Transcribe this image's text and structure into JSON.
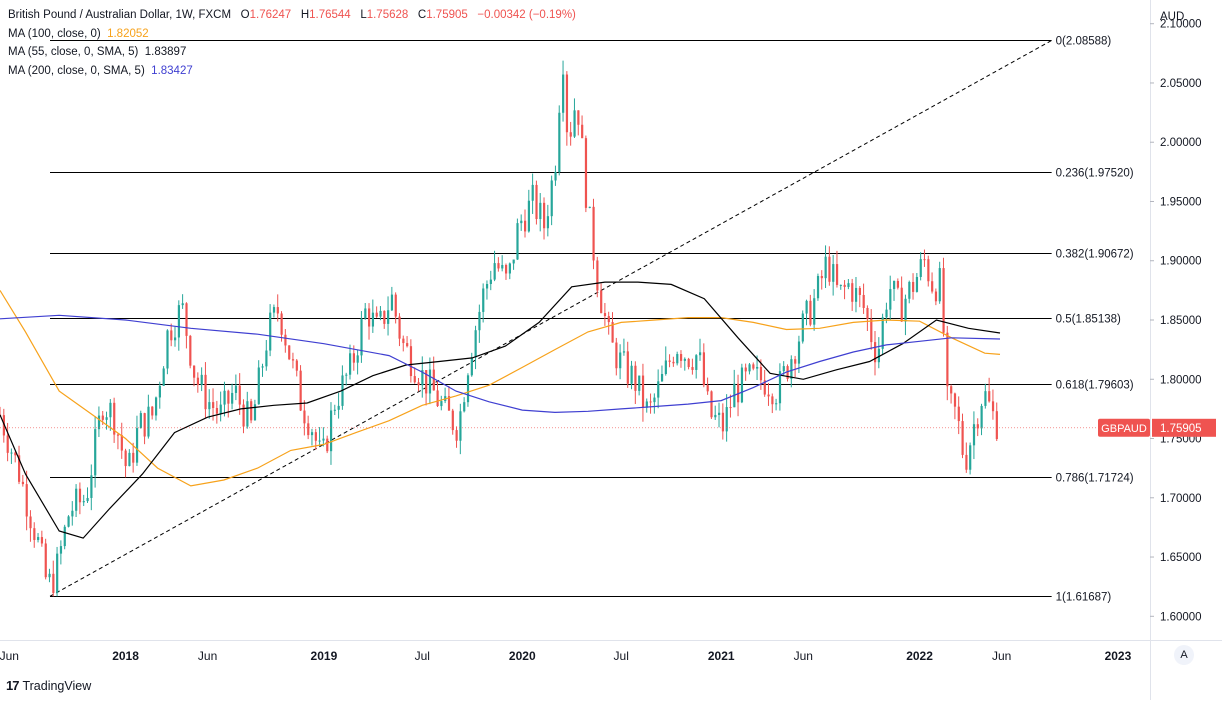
{
  "header": {
    "symbol_title": "British Pound / Australian Dollar, 1W, FXCM",
    "o_label": "O",
    "o_value": "1.76247",
    "h_label": "H",
    "h_value": "1.76544",
    "l_label": "L",
    "l_value": "1.75628",
    "c_label": "C",
    "c_value": "1.75905",
    "change": "−0.00342 (−0.19%)",
    "currency": "AUD"
  },
  "indicators": [
    {
      "label": "MA (100, close, 0)",
      "value": "1.82052",
      "color": "#f7a21b"
    },
    {
      "label": "MA (55, close, 0, SMA, 5)",
      "value": "1.83897",
      "color": "#000000"
    },
    {
      "label": "MA (200, close, 0, SMA, 5)",
      "value": "1.83427",
      "color": "#3f3fd1"
    }
  ],
  "price_badge": {
    "symbol": "GBPAUD",
    "value": "1.75905",
    "color": "#ef5350"
  },
  "footer": {
    "brand": "TradingView",
    "logo_text": "17",
    "auto_label": "A"
  },
  "chart_data": {
    "type": "candlestick",
    "ylim": [
      1.58,
      2.12
    ],
    "y_ticks": [
      "1.60000",
      "1.65000",
      "1.70000",
      "1.75000",
      "1.80000",
      "1.85000",
      "1.90000",
      "1.95000",
      "2.00000",
      "2.05000",
      "2.10000"
    ],
    "y_tick_values": [
      1.6,
      1.65,
      1.7,
      1.75,
      1.8,
      1.85,
      1.9,
      1.95,
      2.0,
      2.05,
      2.1
    ],
    "x_range": [
      "2017-05-15",
      "2023-03-01"
    ],
    "x_ticks": [
      {
        "label": "Jun",
        "date": "2017-06-01",
        "bold": false
      },
      {
        "label": "2018",
        "date": "2018-01-01",
        "bold": true
      },
      {
        "label": "Jun",
        "date": "2018-06-01",
        "bold": false
      },
      {
        "label": "2019",
        "date": "2019-01-01",
        "bold": true
      },
      {
        "label": "Jul",
        "date": "2019-07-01",
        "bold": false
      },
      {
        "label": "2020",
        "date": "2020-01-01",
        "bold": true
      },
      {
        "label": "Jul",
        "date": "2020-07-01",
        "bold": false
      },
      {
        "label": "2021",
        "date": "2021-01-01",
        "bold": true
      },
      {
        "label": "Jun",
        "date": "2021-06-01",
        "bold": false
      },
      {
        "label": "2022",
        "date": "2022-01-01",
        "bold": true
      },
      {
        "label": "Jun",
        "date": "2022-06-01",
        "bold": false
      },
      {
        "label": "2023",
        "date": "2023-01-01",
        "bold": true
      }
    ],
    "up_color": "#26a69a",
    "down_color": "#ef5350",
    "price_path": [
      [
        "2017-05-15",
        1.77
      ],
      [
        "2017-06-20",
        1.72
      ],
      [
        "2017-07-25",
        1.66
      ],
      [
        "2017-08-10",
        1.625
      ],
      [
        "2017-08-25",
        1.635
      ],
      [
        "2017-09-20",
        1.69
      ],
      [
        "2017-10-20",
        1.7
      ],
      [
        "2017-11-20",
        1.78
      ],
      [
        "2017-12-10",
        1.77
      ],
      [
        "2018-01-05",
        1.72
      ],
      [
        "2018-01-25",
        1.76
      ],
      [
        "2018-02-20",
        1.77
      ],
      [
        "2018-03-20",
        1.84
      ],
      [
        "2018-04-15",
        1.86
      ],
      [
        "2018-05-10",
        1.8
      ],
      [
        "2018-06-05",
        1.78
      ],
      [
        "2018-06-25",
        1.77
      ],
      [
        "2018-07-20",
        1.79
      ],
      [
        "2018-08-20",
        1.76
      ],
      [
        "2018-09-20",
        1.84
      ],
      [
        "2018-10-10",
        1.86
      ],
      [
        "2018-10-30",
        1.82
      ],
      [
        "2018-11-20",
        1.78
      ],
      [
        "2018-12-10",
        1.76
      ],
      [
        "2018-12-28",
        1.73
      ],
      [
        "2019-01-20",
        1.78
      ],
      [
        "2019-02-20",
        1.81
      ],
      [
        "2019-03-20",
        1.86
      ],
      [
        "2019-04-10",
        1.84
      ],
      [
        "2019-05-05",
        1.87
      ],
      [
        "2019-05-25",
        1.83
      ],
      [
        "2019-06-20",
        1.81
      ],
      [
        "2019-07-20",
        1.79
      ],
      [
        "2019-08-15",
        1.77
      ],
      [
        "2019-09-05",
        1.76
      ],
      [
        "2019-09-25",
        1.82
      ],
      [
        "2019-10-20",
        1.87
      ],
      [
        "2019-11-10",
        1.9
      ],
      [
        "2019-12-05",
        1.88
      ],
      [
        "2019-12-25",
        1.93
      ],
      [
        "2020-01-20",
        1.95
      ],
      [
        "2020-02-10",
        1.93
      ],
      [
        "2020-03-01",
        1.98
      ],
      [
        "2020-03-15",
        2.08
      ],
      [
        "2020-03-25",
        2.0
      ],
      [
        "2020-04-10",
        2.04
      ],
      [
        "2020-05-01",
        1.94
      ],
      [
        "2020-05-20",
        1.88
      ],
      [
        "2020-06-10",
        1.83
      ],
      [
        "2020-07-05",
        1.81
      ],
      [
        "2020-07-25",
        1.8
      ],
      [
        "2020-08-20",
        1.77
      ],
      [
        "2020-09-15",
        1.8
      ],
      [
        "2020-10-10",
        1.83
      ],
      [
        "2020-10-30",
        1.82
      ],
      [
        "2020-11-20",
        1.82
      ],
      [
        "2020-12-10",
        1.77
      ],
      [
        "2021-01-05",
        1.76
      ],
      [
        "2021-01-25",
        1.79
      ],
      [
        "2021-02-20",
        1.8
      ],
      [
        "2021-03-20",
        1.8
      ],
      [
        "2021-04-15",
        1.79
      ],
      [
        "2021-05-10",
        1.82
      ],
      [
        "2021-06-05",
        1.85
      ],
      [
        "2021-06-25",
        1.87
      ],
      [
        "2021-07-15",
        1.9
      ],
      [
        "2021-08-05",
        1.87
      ],
      [
        "2021-08-25",
        1.88
      ],
      [
        "2021-09-20",
        1.86
      ],
      [
        "2021-10-15",
        1.82
      ],
      [
        "2021-11-05",
        1.88
      ],
      [
        "2021-11-25",
        1.86
      ],
      [
        "2021-12-20",
        1.88
      ],
      [
        "2022-01-10",
        1.9
      ],
      [
        "2022-01-25",
        1.88
      ],
      [
        "2022-02-10",
        1.88
      ],
      [
        "2022-02-20",
        1.78
      ],
      [
        "2022-03-10",
        1.77
      ],
      [
        "2022-03-25",
        1.73
      ],
      [
        "2022-04-10",
        1.76
      ],
      [
        "2022-04-28",
        1.79
      ],
      [
        "2022-05-15",
        1.77
      ],
      [
        "2022-05-29",
        1.759
      ]
    ],
    "lines": [
      {
        "name": "MA (100, close, 0)",
        "color": "#f7a21b",
        "points": [
          [
            "2017-05-15",
            1.875
          ],
          [
            "2017-07-01",
            1.84
          ],
          [
            "2017-09-01",
            1.79
          ],
          [
            "2017-11-01",
            1.77
          ],
          [
            "2018-01-01",
            1.75
          ],
          [
            "2018-03-01",
            1.725
          ],
          [
            "2018-05-01",
            1.71
          ],
          [
            "2018-07-01",
            1.715
          ],
          [
            "2018-09-01",
            1.725
          ],
          [
            "2018-11-01",
            1.74
          ],
          [
            "2019-01-01",
            1.745
          ],
          [
            "2019-03-01",
            1.755
          ],
          [
            "2019-05-01",
            1.765
          ],
          [
            "2019-07-01",
            1.778
          ],
          [
            "2019-09-01",
            1.786
          ],
          [
            "2019-11-01",
            1.795
          ],
          [
            "2020-01-01",
            1.81
          ],
          [
            "2020-03-01",
            1.825
          ],
          [
            "2020-05-01",
            1.84
          ],
          [
            "2020-07-01",
            1.848
          ],
          [
            "2020-09-01",
            1.85
          ],
          [
            "2020-11-01",
            1.852
          ],
          [
            "2021-01-01",
            1.852
          ],
          [
            "2021-03-01",
            1.848
          ],
          [
            "2021-05-01",
            1.842
          ],
          [
            "2021-07-01",
            1.843
          ],
          [
            "2021-09-01",
            1.848
          ],
          [
            "2021-11-01",
            1.85
          ],
          [
            "2022-01-01",
            1.849
          ],
          [
            "2022-03-01",
            1.835
          ],
          [
            "2022-05-01",
            1.822
          ],
          [
            "2022-05-29",
            1.821
          ]
        ]
      },
      {
        "name": "MA (55, close, 0, SMA, 5)",
        "color": "#000000",
        "points": [
          [
            "2017-05-15",
            1.77
          ],
          [
            "2017-07-01",
            1.72
          ],
          [
            "2017-09-01",
            1.672
          ],
          [
            "2017-10-15",
            1.666
          ],
          [
            "2017-12-01",
            1.69
          ],
          [
            "2018-02-01",
            1.72
          ],
          [
            "2018-04-01",
            1.755
          ],
          [
            "2018-06-01",
            1.768
          ],
          [
            "2018-08-01",
            1.775
          ],
          [
            "2018-10-01",
            1.778
          ],
          [
            "2018-12-01",
            1.78
          ],
          [
            "2019-02-01",
            1.79
          ],
          [
            "2019-04-01",
            1.803
          ],
          [
            "2019-06-01",
            1.812
          ],
          [
            "2019-08-01",
            1.815
          ],
          [
            "2019-10-01",
            1.818
          ],
          [
            "2019-12-01",
            1.828
          ],
          [
            "2020-02-01",
            1.848
          ],
          [
            "2020-04-01",
            1.878
          ],
          [
            "2020-06-01",
            1.882
          ],
          [
            "2020-08-01",
            1.882
          ],
          [
            "2020-10-01",
            1.88
          ],
          [
            "2020-12-01",
            1.868
          ],
          [
            "2021-02-01",
            1.835
          ],
          [
            "2021-04-01",
            1.805
          ],
          [
            "2021-06-01",
            1.8
          ],
          [
            "2021-08-01",
            1.808
          ],
          [
            "2021-10-01",
            1.815
          ],
          [
            "2021-12-01",
            1.83
          ],
          [
            "2022-02-01",
            1.85
          ],
          [
            "2022-04-01",
            1.843
          ],
          [
            "2022-05-29",
            1.839
          ]
        ]
      },
      {
        "name": "MA (200, close, 0, SMA, 5)",
        "color": "#3f3fd1",
        "points": [
          [
            "2017-05-15",
            1.851
          ],
          [
            "2017-09-01",
            1.854
          ],
          [
            "2018-01-01",
            1.85
          ],
          [
            "2018-05-01",
            1.843
          ],
          [
            "2018-09-01",
            1.838
          ],
          [
            "2019-01-01",
            1.83
          ],
          [
            "2019-05-01",
            1.82
          ],
          [
            "2019-07-01",
            1.806
          ],
          [
            "2019-09-01",
            1.79
          ],
          [
            "2019-11-01",
            1.781
          ],
          [
            "2020-01-01",
            1.774
          ],
          [
            "2020-03-01",
            1.772
          ],
          [
            "2020-05-01",
            1.773
          ],
          [
            "2020-07-01",
            1.775
          ],
          [
            "2020-09-01",
            1.777
          ],
          [
            "2020-11-01",
            1.779
          ],
          [
            "2021-01-01",
            1.782
          ],
          [
            "2021-03-01",
            1.793
          ],
          [
            "2021-05-01",
            1.806
          ],
          [
            "2021-07-01",
            1.815
          ],
          [
            "2021-09-01",
            1.823
          ],
          [
            "2021-11-01",
            1.829
          ],
          [
            "2022-01-01",
            1.832
          ],
          [
            "2022-03-01",
            1.835
          ],
          [
            "2022-05-29",
            1.834
          ]
        ]
      }
    ],
    "fib_levels": [
      {
        "ratio": "0",
        "value": 2.08588,
        "label": "0(2.08588)"
      },
      {
        "ratio": "0.236",
        "value": 1.9752,
        "label": "0.236(1.97520)"
      },
      {
        "ratio": "0.382",
        "value": 1.90672,
        "label": "0.382(1.90672)"
      },
      {
        "ratio": "0.5",
        "value": 1.85138,
        "label": "0.5(1.85138)"
      },
      {
        "ratio": "0.618",
        "value": 1.79603,
        "label": "0.618(1.79603)"
      },
      {
        "ratio": "0.786",
        "value": 1.71724,
        "label": "0.786(1.71724)"
      },
      {
        "ratio": "1",
        "value": 1.61687,
        "label": "1(1.61687)"
      }
    ],
    "fib_start": "2017-08-15",
    "fib_end": "2022-09-01",
    "trend_line": {
      "from": [
        "2017-08-15",
        1.61687
      ],
      "to": [
        "2022-09-01",
        2.08588
      ]
    }
  }
}
